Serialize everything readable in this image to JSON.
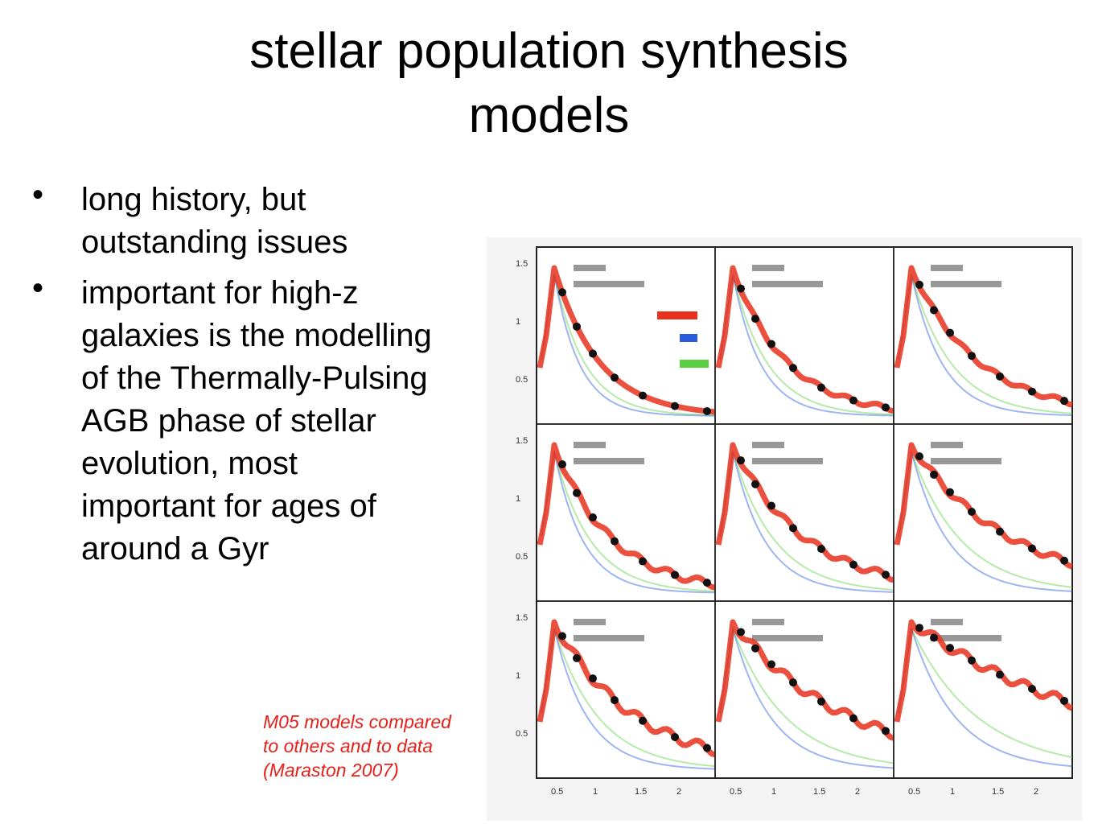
{
  "slide": {
    "title_lines": [
      "stellar population synthesis",
      "models"
    ],
    "bullets": [
      {
        "lines": [
          "long history, but",
          "outstanding issues"
        ]
      },
      {
        "lines": [
          "important for high-z",
          "galaxies is the modelling",
          "of the Thermally-Pulsing",
          "AGB phase of stellar",
          "evolution, most",
          "important for ages of",
          "around a Gyr"
        ]
      }
    ],
    "caption_lines": [
      "M05 models compared",
      "to others and to data",
      "(Maraston 2007)"
    ],
    "caption_color": "#e8201a",
    "bullet_symbol": "•"
  },
  "figure": {
    "description_icon": "spectral-energy-distribution-grid-image",
    "panel_rows": 3,
    "panel_cols": 3,
    "series_colors": {
      "M05": "#e8301c",
      "blue_model": "#2a5ce0",
      "green_model": "#5ad040",
      "data": "#111111"
    },
    "y_tick_labels": [
      "1.5",
      "1",
      "0.5"
    ],
    "x_tick_labels": [
      "0.5",
      "1",
      "1.5",
      "2"
    ]
  }
}
